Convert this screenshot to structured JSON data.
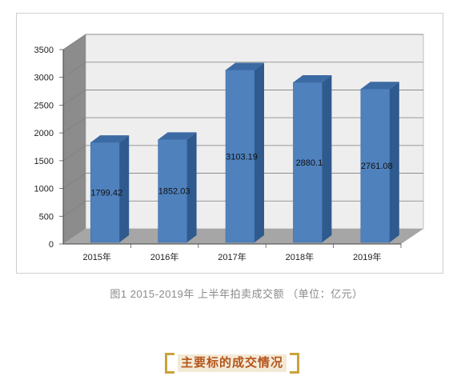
{
  "chart_data": {
    "type": "bar",
    "categories": [
      "2015年",
      "2016年",
      "2017年",
      "2018年",
      "2019年"
    ],
    "values": [
      1799.42,
      1852.03,
      3103.19,
      2880.1,
      2761.08
    ],
    "data_labels": [
      "1799.42",
      "1852.03",
      "3103.19",
      "2880.1",
      "2761.08"
    ],
    "ylim": [
      0,
      3500
    ],
    "yticks": [
      "0",
      "500",
      "1000",
      "1500",
      "2000",
      "2500",
      "3000",
      "3500"
    ],
    "grid": true,
    "style": "3d-column",
    "colors": {
      "bar_front": "#4f81bd",
      "bar_side": "#2f5a8e",
      "bar_top": "#3c6aa3",
      "wall": "#eeeeee",
      "floor": "#a6a6a6",
      "left_wall": "#8c8c8c"
    }
  },
  "caption": "图1  2015-2019年 上半年拍卖成交额 （单位：亿元）",
  "section_title": "主要标的成交情况"
}
